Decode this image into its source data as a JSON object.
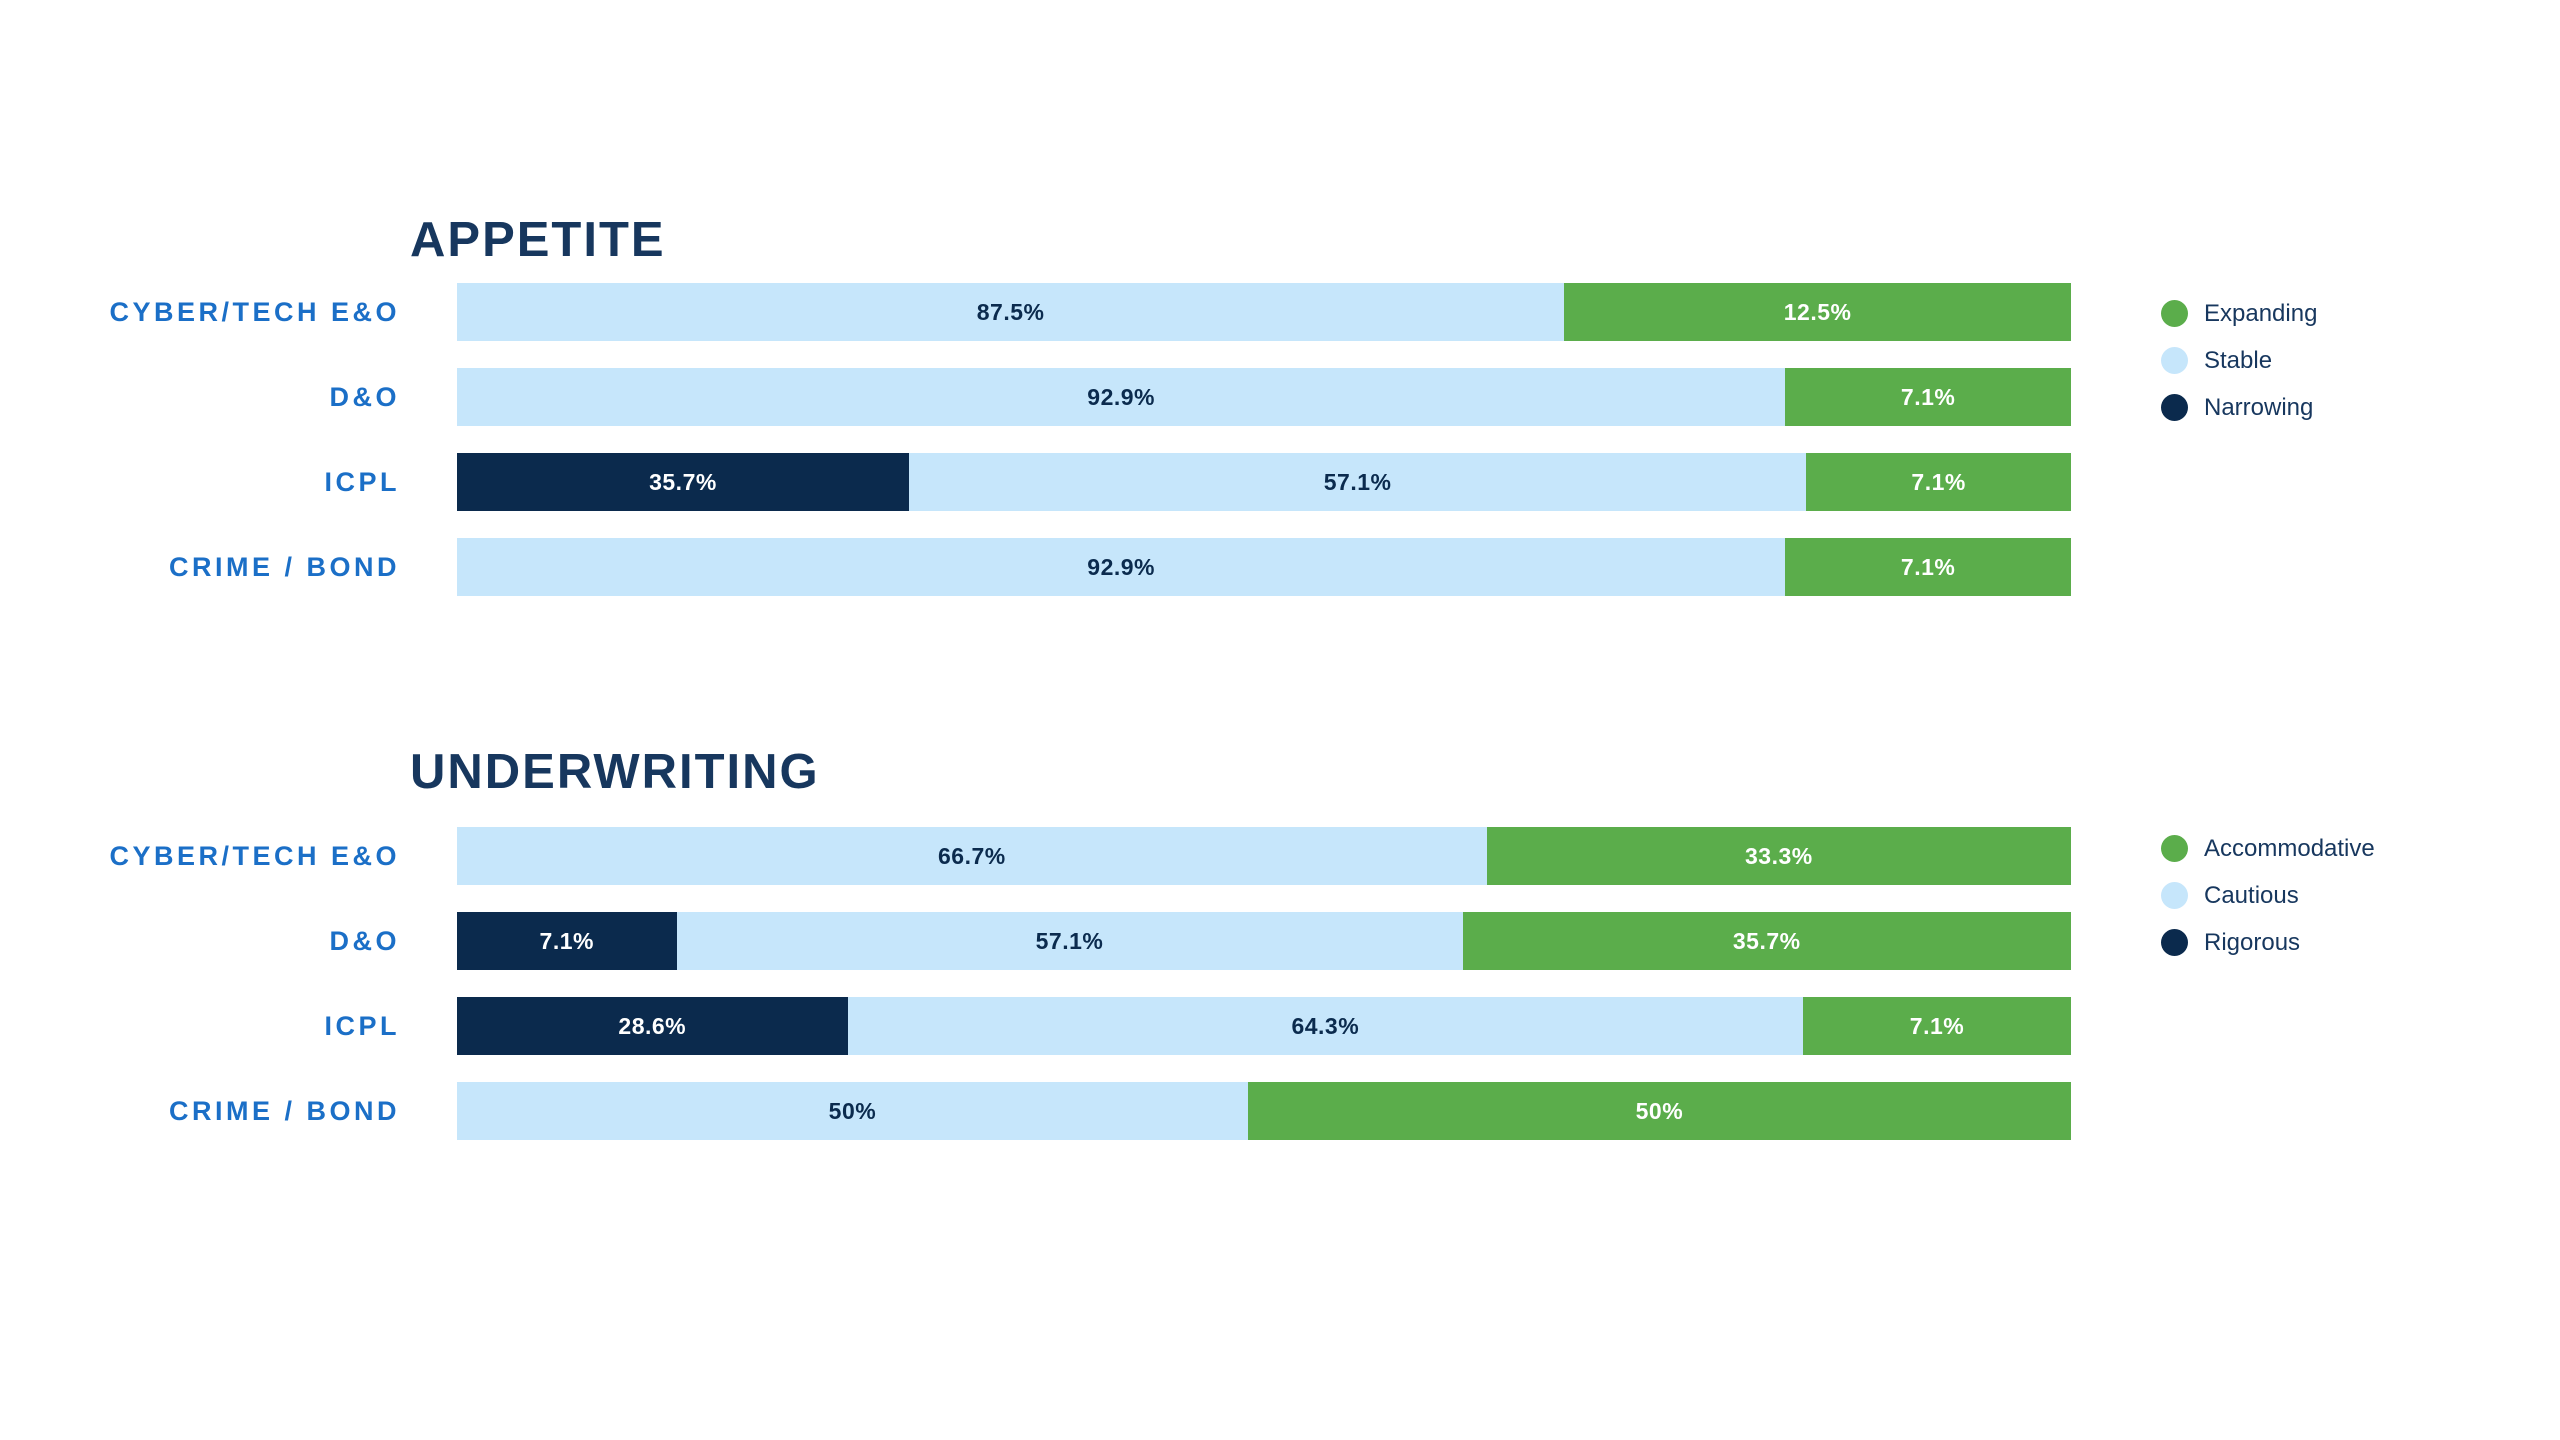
{
  "colors": {
    "background": "#FFFFFF",
    "green": "#5BAD4B",
    "light_blue": "#C6E6FB",
    "navy": "#0B2A4D",
    "label_blue": "#1B6FC7",
    "title_navy": "#17375E",
    "value_navy": "#0B2B4E",
    "white": "#FFFFFF"
  },
  "chart_data": [
    {
      "type": "bar",
      "orientation": "horizontal",
      "stacked": true,
      "title": "APPETITE",
      "legend_position": "right",
      "grid": false,
      "axes_visible": false,
      "value_unit": "%",
      "categories": [
        "CYBER/TECH E&O",
        "D&O",
        "ICPL",
        "CRIME / BOND"
      ],
      "legend": [
        {
          "label": "Expanding",
          "color_key": "green"
        },
        {
          "label": "Stable",
          "color_key": "light_blue"
        },
        {
          "label": "Narrowing",
          "color_key": "navy"
        }
      ],
      "rows": [
        {
          "category": "CYBER/TECH E&O",
          "segments": [
            {
              "name": "Stable",
              "value": 87.5,
              "label": "87.5%",
              "color_key": "light_blue",
              "text_color_key": "value_navy",
              "drawn_width_pct": 68.6
            },
            {
              "name": "Expanding",
              "value": 12.5,
              "label": "12.5%",
              "color_key": "green",
              "text_color_key": "white",
              "drawn_width_pct": 31.4
            }
          ]
        },
        {
          "category": "D&O",
          "segments": [
            {
              "name": "Stable",
              "value": 92.9,
              "label": "92.9%",
              "color_key": "light_blue",
              "text_color_key": "value_navy",
              "drawn_width_pct": 82.3
            },
            {
              "name": "Expanding",
              "value": 7.1,
              "label": "7.1%",
              "color_key": "green",
              "text_color_key": "white",
              "drawn_width_pct": 17.7
            }
          ]
        },
        {
          "category": "ICPL",
          "segments": [
            {
              "name": "Narrowing",
              "value": 35.7,
              "label": "35.7%",
              "color_key": "navy",
              "text_color_key": "white",
              "drawn_width_pct": 28.0
            },
            {
              "name": "Stable",
              "value": 57.1,
              "label": "57.1%",
              "color_key": "light_blue",
              "text_color_key": "value_navy",
              "drawn_width_pct": 55.6
            },
            {
              "name": "Expanding",
              "value": 7.1,
              "label": "7.1%",
              "color_key": "green",
              "text_color_key": "white",
              "drawn_width_pct": 16.4
            }
          ]
        },
        {
          "category": "CRIME / BOND",
          "segments": [
            {
              "name": "Stable",
              "value": 92.9,
              "label": "92.9%",
              "color_key": "light_blue",
              "text_color_key": "value_navy",
              "drawn_width_pct": 82.3
            },
            {
              "name": "Expanding",
              "value": 7.1,
              "label": "7.1%",
              "color_key": "green",
              "text_color_key": "white",
              "drawn_width_pct": 17.7
            }
          ]
        }
      ]
    },
    {
      "type": "bar",
      "orientation": "horizontal",
      "stacked": true,
      "title": "UNDERWRITING",
      "legend_position": "right",
      "grid": false,
      "axes_visible": false,
      "value_unit": "%",
      "categories": [
        "CYBER/TECH E&O",
        "D&O",
        "ICPL",
        "CRIME / BOND"
      ],
      "legend": [
        {
          "label": "Accommodative",
          "color_key": "green"
        },
        {
          "label": "Cautious",
          "color_key": "light_blue"
        },
        {
          "label": "Rigorous",
          "color_key": "navy"
        }
      ],
      "rows": [
        {
          "category": "CYBER/TECH E&O",
          "segments": [
            {
              "name": "Cautious",
              "value": 66.7,
              "label": "66.7%",
              "color_key": "light_blue",
              "text_color_key": "value_navy",
              "drawn_width_pct": 63.8
            },
            {
              "name": "Accommodative",
              "value": 33.3,
              "label": "33.3%",
              "color_key": "green",
              "text_color_key": "white",
              "drawn_width_pct": 36.2
            }
          ]
        },
        {
          "category": "D&O",
          "segments": [
            {
              "name": "Rigorous",
              "value": 7.1,
              "label": "7.1%",
              "color_key": "navy",
              "text_color_key": "white",
              "drawn_width_pct": 13.6
            },
            {
              "name": "Cautious",
              "value": 57.1,
              "label": "57.1%",
              "color_key": "light_blue",
              "text_color_key": "value_navy",
              "drawn_width_pct": 48.7
            },
            {
              "name": "Accommodative",
              "value": 35.7,
              "label": "35.7%",
              "color_key": "green",
              "text_color_key": "white",
              "drawn_width_pct": 37.7
            }
          ]
        },
        {
          "category": "ICPL",
          "segments": [
            {
              "name": "Rigorous",
              "value": 28.6,
              "label": "28.6%",
              "color_key": "navy",
              "text_color_key": "white",
              "drawn_width_pct": 24.2
            },
            {
              "name": "Cautious",
              "value": 64.3,
              "label": "64.3%",
              "color_key": "light_blue",
              "text_color_key": "value_navy",
              "drawn_width_pct": 59.2
            },
            {
              "name": "Accommodative",
              "value": 7.1,
              "label": "7.1%",
              "color_key": "green",
              "text_color_key": "white",
              "drawn_width_pct": 16.6
            }
          ]
        },
        {
          "category": "CRIME / BOND",
          "segments": [
            {
              "name": "Cautious",
              "value": 50,
              "label": "50%",
              "color_key": "light_blue",
              "text_color_key": "value_navy",
              "drawn_width_pct": 49.0
            },
            {
              "name": "Accommodative",
              "value": 50,
              "label": "50%",
              "color_key": "green",
              "text_color_key": "white",
              "drawn_width_pct": 51.0
            }
          ]
        }
      ]
    }
  ]
}
